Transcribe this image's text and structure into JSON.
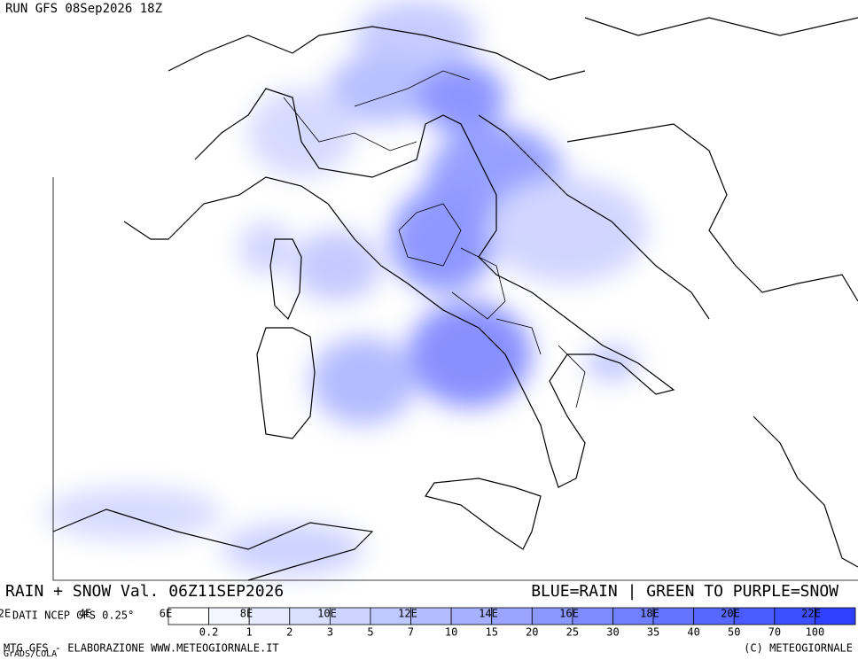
{
  "header": {
    "run": "RUN GFS 08Sep2026 18Z"
  },
  "footer": {
    "title": "RAIN + SNOW Val. 06Z11SEP2026",
    "key": "BLUE=RAIN | GREEN TO PURPLE=SNOW",
    "source": "DATI NCEP GFS 0.25°",
    "credit": "MTG GFS - ELABORAZIONE WWW.METEOGIORNALE.IT",
    "copyright": "(C) METEOGIORNALE",
    "software": "GrADS/COLA"
  },
  "longitudes": [
    "2E",
    "4E",
    "6E",
    "8E",
    "10E",
    "12E",
    "14E",
    "16E",
    "18E",
    "20E",
    "22E"
  ],
  "legend": {
    "values": [
      0.2,
      1,
      2,
      3,
      5,
      7,
      10,
      15,
      20,
      25,
      30,
      35,
      40,
      50,
      70,
      100
    ],
    "colors": [
      "#ffffff",
      "#f4f6ff",
      "#e6ebff",
      "#d9e0ff",
      "#ccd4ff",
      "#bfc8ff",
      "#b2bcff",
      "#a5b0ff",
      "#98a4ff",
      "#8b98ff",
      "#7e8cff",
      "#7180ff",
      "#6474ff",
      "#5768ff",
      "#4a5cff",
      "#3d50ff",
      "#3040ff"
    ]
  }
}
